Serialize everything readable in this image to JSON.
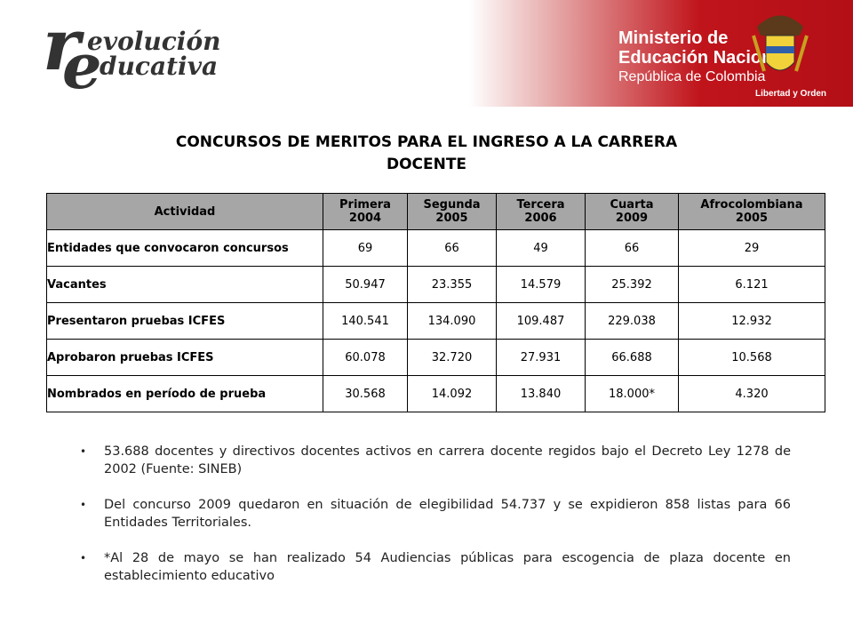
{
  "header": {
    "logo": {
      "r": "r",
      "line1": "evolución",
      "e": "e",
      "line2": "ducativa"
    },
    "ministry": {
      "line1": "Ministerio de",
      "line2": "Educación Nacional",
      "line3": "República de Colombia",
      "motto": "Libertad y Orden"
    }
  },
  "title": {
    "line1": "CONCURSOS DE MERITOS PARA EL  INGRESO A LA CARRERA",
    "line2": "DOCENTE"
  },
  "table": {
    "columns": [
      {
        "name": "Actividad"
      },
      {
        "name": "Primera",
        "year": "2004"
      },
      {
        "name": "Segunda",
        "year": "2005"
      },
      {
        "name": "Tercera",
        "year": "2006"
      },
      {
        "name": "Cuarta",
        "year": "2009"
      },
      {
        "name": "Afrocolombiana",
        "year": "2005"
      }
    ],
    "rows": [
      [
        "Entidades que convocaron concursos",
        "69",
        "66",
        "49",
        "66",
        "29"
      ],
      [
        "Vacantes",
        "50.947",
        "23.355",
        "14.579",
        "25.392",
        "6.121"
      ],
      [
        "Presentaron pruebas  ICFES",
        "140.541",
        "134.090",
        "109.487",
        "229.038",
        "12.932"
      ],
      [
        "Aprobaron pruebas ICFES",
        "60.078",
        "32.720",
        "27.931",
        "66.688",
        "10.568"
      ],
      [
        "Nombrados en período de prueba",
        "30.568",
        "14.092",
        "13.840",
        "18.000*",
        "4.320"
      ]
    ]
  },
  "bullets": [
    "53.688 docentes y directivos docentes activos en carrera docente regidos bajo el Decreto Ley 1278 de 2002  (Fuente: SINEB)",
    "Del concurso 2009 quedaron en situación de elegibilidad 54.737 y se expidieron 858 listas para 66 Entidades Territoriales.",
    "*Al 28 de mayo se han realizado 54 Audiencias públicas para escogencia de plaza docente en establecimiento educativo"
  ]
}
